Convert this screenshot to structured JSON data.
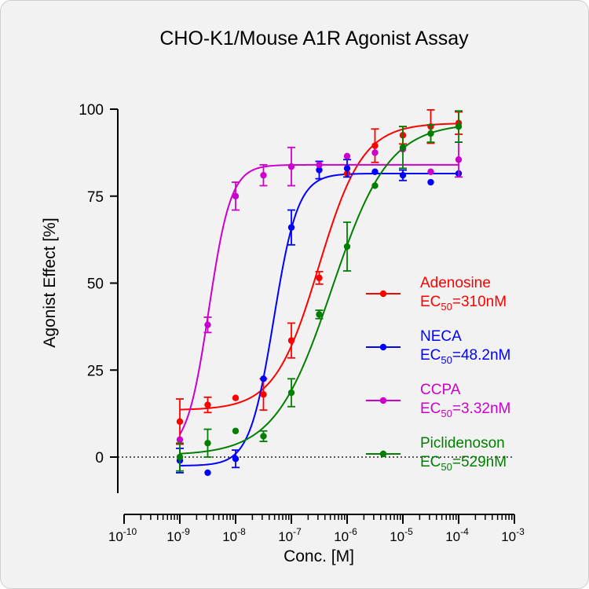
{
  "chart_data": {
    "type": "scatter",
    "title": "CHO-K1/Mouse A1R Agonist Assay",
    "xlabel": "Conc. [M]",
    "ylabel": "Agonist Effect [%]",
    "x_scale": "log",
    "xlim": [
      1e-10,
      0.001
    ],
    "ylim": [
      -10,
      100
    ],
    "x_ticks": [
      {
        "value": 1e-10,
        "base": "10",
        "exp": "-10"
      },
      {
        "value": 1e-09,
        "base": "10",
        "exp": "-9"
      },
      {
        "value": 1e-08,
        "base": "10",
        "exp": "-8"
      },
      {
        "value": 1e-07,
        "base": "10",
        "exp": "-7"
      },
      {
        "value": 1e-06,
        "base": "10",
        "exp": "-6"
      },
      {
        "value": 1e-05,
        "base": "10",
        "exp": "-5"
      },
      {
        "value": 0.0001,
        "base": "10",
        "exp": "-4"
      },
      {
        "value": 0.001,
        "base": "10",
        "exp": "-3"
      }
    ],
    "y_ticks": [
      {
        "value": 0,
        "label": "0"
      },
      {
        "value": 25,
        "label": "25"
      },
      {
        "value": 50,
        "label": "50"
      },
      {
        "value": 75,
        "label": "75"
      },
      {
        "value": 100,
        "label": "100"
      }
    ],
    "zero_line": "dotted",
    "grid": false,
    "legend_position": "right",
    "series": [
      {
        "name": "Adenosine",
        "ec50_prefix": "EC",
        "ec50_sub": "50",
        "ec50_value": "=310nM",
        "color": "#ff0000",
        "fit": {
          "bottom": 13.5,
          "top": 96,
          "ec50": 3.1e-07,
          "hill": 1.1
        },
        "points": [
          {
            "x": 1e-09,
            "y": 10.2,
            "err": 6.5
          },
          {
            "x": 3.16e-09,
            "y": 15.0,
            "err": 2.2
          },
          {
            "x": 1e-08,
            "y": 17.0,
            "err": 0
          },
          {
            "x": 3.16e-08,
            "y": 18.0,
            "err": 4.5
          },
          {
            "x": 1e-07,
            "y": 33.5,
            "err": 5.0
          },
          {
            "x": 3.16e-07,
            "y": 51.5,
            "err": 1.8
          },
          {
            "x": 1e-06,
            "y": 81.5,
            "err": 0
          },
          {
            "x": 3.16e-06,
            "y": 89.5,
            "err": 4.8
          },
          {
            "x": 1e-05,
            "y": 92.5,
            "err": 2.5
          },
          {
            "x": 3.16e-05,
            "y": 95.0,
            "err": 4.8
          },
          {
            "x": 0.0001,
            "y": 96.0,
            "err": 3.2
          }
        ]
      },
      {
        "name": "NECA",
        "ec50_prefix": "EC",
        "ec50_sub": "50",
        "ec50_value": "=48.2nM",
        "color": "#0000ff",
        "fit": {
          "bottom": -2.5,
          "top": 81.5,
          "ec50": 4.82e-08,
          "hill": 2.0
        },
        "points": [
          {
            "x": 1e-09,
            "y": -1.0,
            "err": 3.5
          },
          {
            "x": 3.16e-09,
            "y": -4.5,
            "err": 0
          },
          {
            "x": 1e-08,
            "y": -0.5,
            "err": 2.5
          },
          {
            "x": 3.16e-08,
            "y": 22.5,
            "err": 0
          },
          {
            "x": 1e-07,
            "y": 66.0,
            "err": 5.0
          },
          {
            "x": 3.16e-07,
            "y": 82.5,
            "err": 2.5
          },
          {
            "x": 1e-06,
            "y": 83.0,
            "err": 2.5
          },
          {
            "x": 3.16e-06,
            "y": 82.0,
            "err": 0
          },
          {
            "x": 1e-05,
            "y": 81.0,
            "err": 1.5
          },
          {
            "x": 3.16e-05,
            "y": 79.0,
            "err": 0
          },
          {
            "x": 0.0001,
            "y": 81.5,
            "err": 0
          }
        ]
      },
      {
        "name": "CCPA",
        "ec50_prefix": "EC",
        "ec50_sub": "50",
        "ec50_value": "=3.32nM",
        "color": "#cc00cc",
        "fit": {
          "bottom": 1.0,
          "top": 84,
          "ec50": 3.32e-09,
          "hill": 2.2
        },
        "points": [
          {
            "x": 1e-09,
            "y": 5.0,
            "err": 0
          },
          {
            "x": 3.16e-09,
            "y": 38.0,
            "err": 2.2
          },
          {
            "x": 1e-08,
            "y": 75.0,
            "err": 4.0
          },
          {
            "x": 3.16e-08,
            "y": 81.0,
            "err": 3.0
          },
          {
            "x": 1e-07,
            "y": 83.5,
            "err": 5.5
          },
          {
            "x": 3.16e-07,
            "y": 84.0,
            "err": 0
          },
          {
            "x": 1e-06,
            "y": 86.5,
            "err": 0
          },
          {
            "x": 3.16e-06,
            "y": 87.5,
            "err": 0
          },
          {
            "x": 1e-05,
            "y": 88.5,
            "err": 0
          },
          {
            "x": 3.16e-05,
            "y": 82.0,
            "err": 0
          },
          {
            "x": 0.0001,
            "y": 85.5,
            "err": 5.0
          }
        ]
      },
      {
        "name": "Piclidenoson",
        "ec50_prefix": "EC",
        "ec50_sub": "50",
        "ec50_value": "=529nM",
        "color": "#007f00",
        "fit": {
          "bottom": 0.5,
          "top": 96,
          "ec50": 5.29e-07,
          "hill": 0.85
        },
        "points": [
          {
            "x": 1e-09,
            "y": 0.0,
            "err": 4.0
          },
          {
            "x": 3.16e-09,
            "y": 4.0,
            "err": 4.0
          },
          {
            "x": 1e-08,
            "y": 7.5,
            "err": 0
          },
          {
            "x": 3.16e-08,
            "y": 6.0,
            "err": 1.5
          },
          {
            "x": 1e-07,
            "y": 18.5,
            "err": 4.0
          },
          {
            "x": 3.16e-07,
            "y": 41.0,
            "err": 1.2
          },
          {
            "x": 1e-06,
            "y": 60.5,
            "err": 7.0
          },
          {
            "x": 3.16e-06,
            "y": 78.0,
            "err": 0
          },
          {
            "x": 1e-05,
            "y": 89.0,
            "err": 6.0
          },
          {
            "x": 3.16e-05,
            "y": 93.0,
            "err": 2.5
          },
          {
            "x": 0.0001,
            "y": 95.0,
            "err": 4.5
          }
        ]
      }
    ]
  }
}
